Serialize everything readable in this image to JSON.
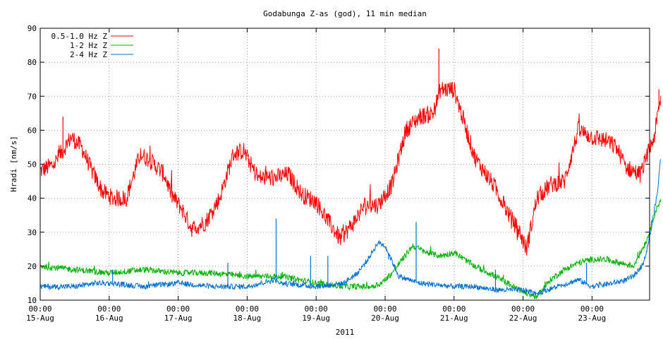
{
  "chart_data": {
    "type": "line",
    "title": "Godabunga Z-as (god), 11 min median",
    "ylabel": "Hradi [nm/s]",
    "xlabel": "2011",
    "ylim": [
      10,
      90
    ],
    "yticks": [
      10,
      20,
      30,
      40,
      50,
      60,
      70,
      80,
      90
    ],
    "x_range_days": [
      0,
      9.0
    ],
    "xticks": [
      {
        "day": 0,
        "time": "00:00",
        "date": "15-Aug"
      },
      {
        "day": 1,
        "time": "00:00",
        "date": "16-Aug"
      },
      {
        "day": 2,
        "time": "00:00",
        "date": "17-Aug"
      },
      {
        "day": 3,
        "time": "00:00",
        "date": "18-Aug"
      },
      {
        "day": 4,
        "time": "00:00",
        "date": "19-Aug"
      },
      {
        "day": 5,
        "time": "00:00",
        "date": "20-Aug"
      },
      {
        "day": 6,
        "time": "00:00",
        "date": "21-Aug"
      },
      {
        "day": 7,
        "time": "00:00",
        "date": "22-Aug"
      },
      {
        "day": 8,
        "time": "00:00",
        "date": "23-Aug"
      }
    ],
    "grid": true,
    "legend_position": "top-left",
    "series": [
      {
        "name": "0.5-1.0 Hz Z",
        "color": "#ff0000",
        "x": [
          0,
          0.2,
          0.45,
          0.6,
          0.75,
          0.9,
          1.05,
          1.25,
          1.45,
          1.6,
          1.8,
          1.9,
          2.05,
          2.2,
          2.4,
          2.6,
          2.8,
          2.95,
          3.15,
          3.4,
          3.6,
          3.8,
          4.0,
          4.15,
          4.35,
          4.55,
          4.7,
          4.9,
          5.1,
          5.3,
          5.5,
          5.7,
          5.8,
          6.0,
          6.3,
          6.6,
          6.8,
          6.95,
          7.05,
          7.2,
          7.4,
          7.6,
          7.8,
          8.0,
          8.2,
          8.35,
          8.5,
          8.7,
          8.9,
          9.0
        ],
        "values": [
          48,
          50,
          58,
          55,
          48,
          42,
          40,
          40,
          53,
          51,
          47,
          41,
          37,
          31,
          33,
          40,
          53,
          54,
          46,
          46,
          47,
          41,
          39,
          34,
          28,
          33,
          38,
          38,
          44,
          60,
          64,
          65,
          72,
          72,
          52,
          43,
          35,
          30,
          25,
          40,
          44,
          45,
          60,
          58,
          57,
          55,
          49,
          47,
          58,
          70
        ]
      },
      {
        "name": "1-2 Hz Z",
        "color": "#00b000",
        "x": [
          0,
          0.5,
          1.0,
          1.5,
          2.0,
          2.5,
          3.0,
          3.5,
          4.0,
          4.4,
          4.8,
          4.95,
          5.1,
          5.4,
          5.6,
          5.8,
          6.0,
          6.3,
          6.6,
          6.95,
          7.05,
          7.2,
          7.4,
          7.6,
          7.8,
          8.0,
          8.2,
          8.4,
          8.6,
          8.8,
          8.9,
          9.0
        ],
        "values": [
          20,
          19,
          18,
          19,
          18,
          18,
          17,
          17,
          15,
          14,
          14,
          15,
          18,
          26,
          24,
          23,
          24,
          20,
          17,
          13,
          12,
          11,
          16,
          19,
          21,
          22,
          22,
          21,
          20,
          28,
          35,
          40
        ]
      },
      {
        "name": "2-4 Hz Z",
        "color": "#0070d0",
        "x": [
          0,
          0.5,
          0.8,
          1.0,
          1.5,
          2.0,
          2.5,
          3.0,
          3.4,
          3.5,
          4.0,
          4.4,
          4.6,
          4.75,
          4.9,
          5.0,
          5.2,
          5.5,
          6.0,
          6.3,
          6.6,
          6.8,
          7.0,
          7.2,
          7.5,
          7.8,
          8.0,
          8.3,
          8.5,
          8.6,
          8.75,
          8.85,
          8.95,
          9.0
        ],
        "values": [
          14,
          14,
          15,
          15,
          14,
          15,
          14,
          14,
          16,
          15,
          14,
          15,
          18,
          22,
          27,
          26,
          17,
          15,
          14,
          14,
          13,
          13,
          13,
          12,
          14,
          16,
          14,
          15,
          16,
          17,
          21,
          30,
          42,
          53
        ]
      }
    ],
    "spikes": [
      {
        "series": "0.5-1.0 Hz Z",
        "x": 0.33,
        "y": 64
      },
      {
        "series": "0.5-1.0 Hz Z",
        "x": 5.78,
        "y": 84
      },
      {
        "series": "0.5-1.0 Hz Z",
        "x": 8.97,
        "y": 72
      },
      {
        "series": "2-4 Hz Z",
        "x": 3.42,
        "y": 34
      },
      {
        "series": "2-4 Hz Z",
        "x": 3.92,
        "y": 23
      },
      {
        "series": "2-4 Hz Z",
        "x": 4.17,
        "y": 23
      },
      {
        "series": "2-4 Hz Z",
        "x": 5.45,
        "y": 33
      },
      {
        "series": "2-4 Hz Z",
        "x": 1.05,
        "y": 19
      },
      {
        "series": "2-4 Hz Z",
        "x": 2.72,
        "y": 21
      },
      {
        "series": "2-4 Hz Z",
        "x": 7.92,
        "y": 21
      },
      {
        "series": "2-4 Hz Z",
        "x": 6.6,
        "y": 19
      },
      {
        "series": "2-4 Hz Z",
        "x": 5.05,
        "y": 22
      }
    ]
  }
}
